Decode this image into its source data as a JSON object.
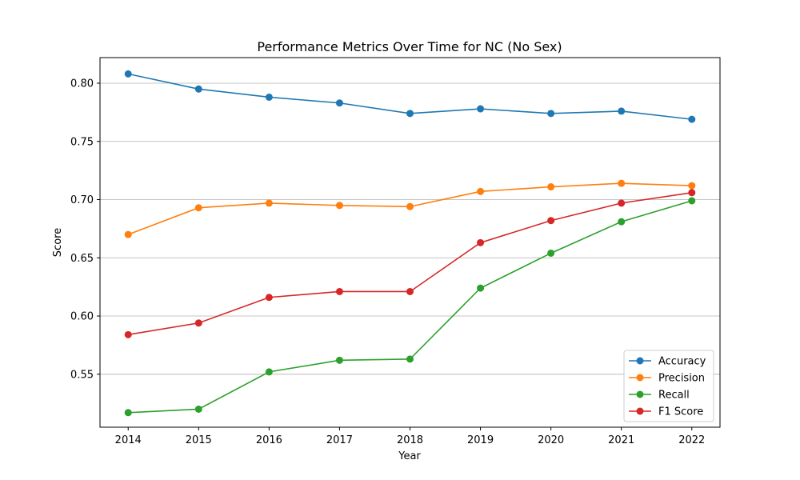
{
  "chart_data": {
    "type": "line",
    "title": "Performance Metrics Over Time for NC (No Sex)",
    "xlabel": "Year",
    "ylabel": "Score",
    "x": [
      2014,
      2015,
      2016,
      2017,
      2018,
      2019,
      2020,
      2021,
      2022
    ],
    "xlim": [
      2013.6,
      2022.4
    ],
    "ylim": [
      0.5045,
      0.822
    ],
    "yticks": [
      "0.55",
      "0.60",
      "0.65",
      "0.70",
      "0.75",
      "0.80"
    ],
    "grid": "horizontal",
    "legend_position": "lower-right",
    "series": [
      {
        "name": "Accuracy",
        "color": "#1f77b4",
        "values": [
          0.808,
          0.795,
          0.788,
          0.783,
          0.774,
          0.778,
          0.774,
          0.776,
          0.769
        ]
      },
      {
        "name": "Precision",
        "color": "#ff7f0e",
        "values": [
          0.67,
          0.693,
          0.697,
          0.695,
          0.694,
          0.707,
          0.711,
          0.714,
          0.712
        ]
      },
      {
        "name": "Recall",
        "color": "#2ca02c",
        "values": [
          0.517,
          0.52,
          0.552,
          0.562,
          0.563,
          0.624,
          0.654,
          0.681,
          0.699
        ]
      },
      {
        "name": "F1 Score",
        "color": "#d62728",
        "values": [
          0.584,
          0.594,
          0.616,
          0.621,
          0.621,
          0.663,
          0.682,
          0.697,
          0.706
        ]
      }
    ]
  }
}
